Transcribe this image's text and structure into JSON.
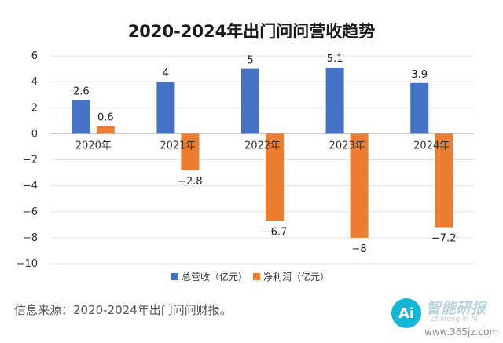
{
  "chart_data": {
    "type": "bar",
    "title": "2020-2024年出门问问营收趋势",
    "categories": [
      "2020年",
      "2021年",
      "2022年",
      "2023年",
      "2024年"
    ],
    "series": [
      {
        "name": "总营收（亿元）",
        "color": "#4472c4",
        "values": [
          2.6,
          4,
          5,
          5.1,
          3.9
        ]
      },
      {
        "name": "净利润（亿元）",
        "color": "#ed7d31",
        "values": [
          0.6,
          -2.8,
          -6.7,
          -8,
          -7.2
        ]
      }
    ],
    "ylim": [
      -10,
      6
    ],
    "yticks": [
      6,
      4,
      2,
      0,
      -2,
      -4,
      -6,
      -8,
      -10
    ],
    "grid": true,
    "legend": "bottom"
  },
  "source": "信息来源：2020-2024年出门问问财报。",
  "logo": {
    "text": "智能研报",
    "badge": "Ai",
    "sub": "Zhineng in AI"
  },
  "watermark": "www.365jz.com"
}
